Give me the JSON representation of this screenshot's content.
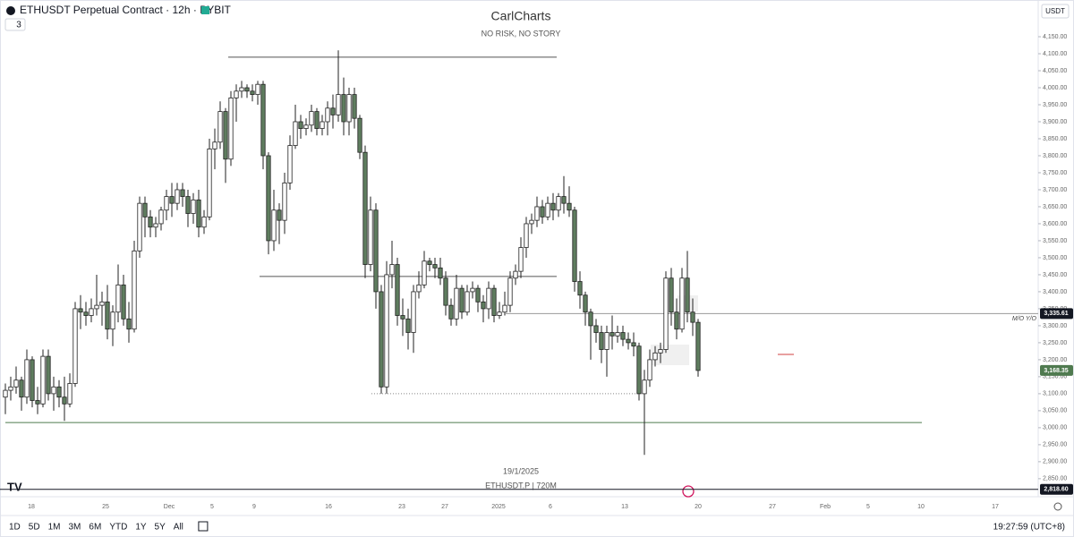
{
  "header": {
    "symbol": "ETHUSDT Perpetual Contract · 12h · BYBIT",
    "indicator_count": "3",
    "currency": "USDT"
  },
  "watermark": {
    "title": "CarlCharts",
    "subtitle": "NO RISK, NO STORY",
    "date": "19/1/2025",
    "caption": "ETHUSDT.P | 720M"
  },
  "toolbar": {
    "ranges": [
      "1D",
      "5D",
      "1M",
      "3M",
      "6M",
      "YTD",
      "1Y",
      "5Y",
      "All"
    ],
    "clock": "19:27:59 (UTC+8)"
  },
  "chart_data": {
    "type": "candlestick",
    "up_color": "#ffffff",
    "down_color": "#5f7d5f",
    "wick_color": "#222222",
    "ylim": [
      2797,
      4258
    ],
    "yticks": [
      {
        "value": 4150,
        "label": "4,150.00"
      },
      {
        "value": 4100,
        "label": "4,100.00"
      },
      {
        "value": 4050,
        "label": "4,050.00"
      },
      {
        "value": 4000,
        "label": "4,000.00"
      },
      {
        "value": 3950,
        "label": "3,950.00"
      },
      {
        "value": 3900,
        "label": "3,900.00"
      },
      {
        "value": 3850,
        "label": "3,850.00"
      },
      {
        "value": 3800,
        "label": "3,800.00"
      },
      {
        "value": 3750,
        "label": "3,750.00"
      },
      {
        "value": 3700,
        "label": "3,700.00"
      },
      {
        "value": 3650,
        "label": "3,650.00"
      },
      {
        "value": 3600,
        "label": "3,600.00"
      },
      {
        "value": 3550,
        "label": "3,550.00"
      },
      {
        "value": 3500,
        "label": "3,500.00"
      },
      {
        "value": 3450,
        "label": "3,450.00"
      },
      {
        "value": 3400,
        "label": "3,400.00"
      },
      {
        "value": 3350,
        "label": "3,350.00"
      },
      {
        "value": 3300,
        "label": "3,300.00"
      },
      {
        "value": 3250,
        "label": "3,250.00"
      },
      {
        "value": 3200,
        "label": "3,200.00"
      },
      {
        "value": 3150,
        "label": "3,150.00"
      },
      {
        "value": 3100,
        "label": "3,100.00"
      },
      {
        "value": 3050,
        "label": "3,050.00"
      },
      {
        "value": 3000,
        "label": "3,000.00"
      },
      {
        "value": 2950,
        "label": "2,950.00"
      },
      {
        "value": 2900,
        "label": "2,900.00"
      },
      {
        "value": 2850,
        "label": "2,850.00"
      }
    ],
    "xtick_labels": [
      "18",
      "25",
      "Dec",
      "5",
      "9",
      "16",
      "23",
      "27",
      "2025",
      "6",
      "13",
      "20",
      "27",
      "Feb",
      "5",
      "10",
      "17"
    ],
    "price_labels": [
      {
        "value": 3335.61,
        "label": "3,335.61"
      },
      {
        "value": 3168.35,
        "label": "3,168.35"
      },
      {
        "value": 2818.6,
        "label": "2,818.60"
      }
    ],
    "price_label_colors": [
      "#131722",
      "#4f7a4f",
      "#131722"
    ],
    "line_annotation": "M/O Y/O",
    "levels": [
      4090,
      3445,
      3100,
      3015
    ],
    "level_colors": [
      "#555555",
      "#555555",
      "#888888",
      "#4f7a4f"
    ],
    "ohlc": [
      [
        3090,
        3130,
        3040,
        3110
      ],
      [
        3110,
        3150,
        3080,
        3120
      ],
      [
        3120,
        3180,
        3100,
        3140
      ],
      [
        3140,
        3150,
        3050,
        3090
      ],
      [
        3090,
        3230,
        3070,
        3200
      ],
      [
        3200,
        3210,
        3060,
        3080
      ],
      [
        3080,
        3120,
        3040,
        3070
      ],
      [
        3070,
        3230,
        3060,
        3210
      ],
      [
        3210,
        3230,
        3080,
        3100
      ],
      [
        3100,
        3150,
        3050,
        3120
      ],
      [
        3120,
        3140,
        3060,
        3090
      ],
      [
        3090,
        3150,
        3020,
        3070
      ],
      [
        3070,
        3160,
        3060,
        3130
      ],
      [
        3130,
        3370,
        3120,
        3350
      ],
      [
        3350,
        3390,
        3290,
        3340
      ],
      [
        3340,
        3370,
        3300,
        3330
      ],
      [
        3330,
        3380,
        3310,
        3350
      ],
      [
        3350,
        3450,
        3330,
        3360
      ],
      [
        3360,
        3400,
        3300,
        3370
      ],
      [
        3370,
        3420,
        3260,
        3290
      ],
      [
        3290,
        3360,
        3240,
        3340
      ],
      [
        3340,
        3480,
        3310,
        3420
      ],
      [
        3420,
        3450,
        3300,
        3320
      ],
      [
        3320,
        3370,
        3250,
        3290
      ],
      [
        3290,
        3550,
        3280,
        3520
      ],
      [
        3520,
        3680,
        3500,
        3660
      ],
      [
        3660,
        3680,
        3560,
        3620
      ],
      [
        3620,
        3640,
        3560,
        3590
      ],
      [
        3590,
        3620,
        3560,
        3600
      ],
      [
        3600,
        3650,
        3580,
        3640
      ],
      [
        3640,
        3700,
        3610,
        3680
      ],
      [
        3680,
        3720,
        3620,
        3660
      ],
      [
        3660,
        3720,
        3640,
        3700
      ],
      [
        3700,
        3720,
        3650,
        3680
      ],
      [
        3680,
        3700,
        3590,
        3630
      ],
      [
        3630,
        3690,
        3600,
        3670
      ],
      [
        3670,
        3700,
        3560,
        3590
      ],
      [
        3590,
        3640,
        3570,
        3620
      ],
      [
        3620,
        3850,
        3610,
        3820
      ],
      [
        3820,
        3880,
        3760,
        3840
      ],
      [
        3840,
        3960,
        3820,
        3930
      ],
      [
        3930,
        3940,
        3720,
        3790
      ],
      [
        3790,
        3990,
        3770,
        3970
      ],
      [
        3970,
        4010,
        3900,
        3990
      ],
      [
        3990,
        4020,
        3970,
        4000
      ],
      [
        4000,
        4010,
        3970,
        3990
      ],
      [
        3990,
        4010,
        3960,
        3980
      ],
      [
        3980,
        4020,
        3950,
        4010
      ],
      [
        4010,
        4020,
        3760,
        3800
      ],
      [
        3800,
        3810,
        3510,
        3550
      ],
      [
        3550,
        3700,
        3520,
        3640
      ],
      [
        3640,
        3660,
        3540,
        3610
      ],
      [
        3610,
        3750,
        3570,
        3720
      ],
      [
        3720,
        3860,
        3700,
        3830
      ],
      [
        3830,
        3950,
        3820,
        3900
      ],
      [
        3900,
        3920,
        3850,
        3880
      ],
      [
        3880,
        3910,
        3860,
        3890
      ],
      [
        3890,
        3950,
        3870,
        3930
      ],
      [
        3930,
        3940,
        3860,
        3880
      ],
      [
        3880,
        3920,
        3860,
        3900
      ],
      [
        3900,
        3960,
        3860,
        3940
      ],
      [
        3940,
        3980,
        3880,
        3920
      ],
      [
        3920,
        4110,
        3900,
        3980
      ],
      [
        3980,
        4030,
        3860,
        3900
      ],
      [
        3900,
        4000,
        3860,
        3980
      ],
      [
        3980,
        4000,
        3880,
        3910
      ],
      [
        3910,
        3920,
        3790,
        3810
      ],
      [
        3810,
        3830,
        3440,
        3480
      ],
      [
        3480,
        3680,
        3460,
        3640
      ],
      [
        3640,
        3660,
        3350,
        3400
      ],
      [
        3400,
        3420,
        3100,
        3120
      ],
      [
        3120,
        3490,
        3100,
        3450
      ],
      [
        3450,
        3550,
        3410,
        3480
      ],
      [
        3480,
        3500,
        3300,
        3330
      ],
      [
        3330,
        3380,
        3270,
        3320
      ],
      [
        3320,
        3350,
        3230,
        3280
      ],
      [
        3280,
        3420,
        3220,
        3400
      ],
      [
        3400,
        3460,
        3380,
        3420
      ],
      [
        3420,
        3520,
        3410,
        3490
      ],
      [
        3490,
        3500,
        3460,
        3480
      ],
      [
        3480,
        3500,
        3440,
        3470
      ],
      [
        3470,
        3500,
        3420,
        3440
      ],
      [
        3440,
        3460,
        3330,
        3360
      ],
      [
        3360,
        3380,
        3300,
        3320
      ],
      [
        3320,
        3450,
        3300,
        3410
      ],
      [
        3410,
        3420,
        3320,
        3340
      ],
      [
        3340,
        3420,
        3330,
        3400
      ],
      [
        3400,
        3430,
        3380,
        3410
      ],
      [
        3410,
        3420,
        3340,
        3370
      ],
      [
        3370,
        3390,
        3310,
        3350
      ],
      [
        3350,
        3430,
        3320,
        3410
      ],
      [
        3410,
        3420,
        3310,
        3330
      ],
      [
        3330,
        3370,
        3320,
        3340
      ],
      [
        3340,
        3400,
        3330,
        3360
      ],
      [
        3360,
        3460,
        3340,
        3440
      ],
      [
        3440,
        3480,
        3420,
        3460
      ],
      [
        3460,
        3560,
        3440,
        3530
      ],
      [
        3530,
        3620,
        3500,
        3600
      ],
      [
        3600,
        3630,
        3570,
        3610
      ],
      [
        3610,
        3680,
        3590,
        3650
      ],
      [
        3650,
        3670,
        3600,
        3620
      ],
      [
        3620,
        3680,
        3610,
        3660
      ],
      [
        3660,
        3690,
        3610,
        3640
      ],
      [
        3640,
        3690,
        3620,
        3680
      ],
      [
        3680,
        3740,
        3630,
        3660
      ],
      [
        3660,
        3710,
        3620,
        3640
      ],
      [
        3640,
        3650,
        3400,
        3430
      ],
      [
        3430,
        3460,
        3350,
        3390
      ],
      [
        3390,
        3400,
        3300,
        3340
      ],
      [
        3340,
        3350,
        3200,
        3300
      ],
      [
        3300,
        3320,
        3250,
        3280
      ],
      [
        3280,
        3300,
        3190,
        3230
      ],
      [
        3230,
        3300,
        3150,
        3280
      ],
      [
        3280,
        3330,
        3230,
        3270
      ],
      [
        3270,
        3300,
        3250,
        3280
      ],
      [
        3280,
        3300,
        3240,
        3260
      ],
      [
        3260,
        3280,
        3230,
        3250
      ],
      [
        3250,
        3280,
        3210,
        3240
      ],
      [
        3240,
        3250,
        3080,
        3100
      ],
      [
        3100,
        3170,
        2920,
        3140
      ],
      [
        3140,
        3230,
        3120,
        3200
      ],
      [
        3200,
        3240,
        3180,
        3220
      ],
      [
        3220,
        3250,
        3190,
        3230
      ],
      [
        3230,
        3460,
        3220,
        3440
      ],
      [
        3440,
        3470,
        3300,
        3340
      ],
      [
        3340,
        3380,
        3260,
        3290
      ],
      [
        3290,
        3470,
        3280,
        3440
      ],
      [
        3440,
        3520,
        3310,
        3340
      ],
      [
        3340,
        3380,
        3270,
        3310
      ],
      [
        3310,
        3320,
        3150,
        3168.35
      ]
    ]
  }
}
